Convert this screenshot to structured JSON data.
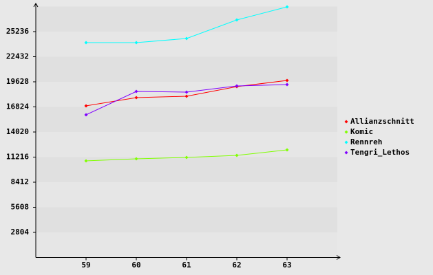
{
  "chart_data": {
    "type": "line",
    "x": [
      59,
      60,
      61,
      62,
      63
    ],
    "xlim": [
      58,
      64
    ],
    "xticks": [
      59,
      60,
      61,
      62,
      63
    ],
    "ylim": [
      0,
      28040
    ],
    "yticks": [
      2804,
      5608,
      8412,
      11216,
      14020,
      16824,
      19628,
      22432,
      25236
    ],
    "grid": true,
    "legend": "right",
    "series": [
      {
        "name": "Allianzschnitt",
        "color": "#ff0000",
        "values": [
          16939,
          17861,
          18015,
          19090,
          19782
        ]
      },
      {
        "name": "Komic",
        "color": "#80ff00",
        "values": [
          10793,
          11024,
          11178,
          11408,
          12023
        ]
      },
      {
        "name": "Rennreh",
        "color": "#00ffff",
        "values": [
          24007,
          24007,
          24468,
          26542,
          28001
        ]
      },
      {
        "name": "Tengri_Lethos",
        "color": "#8000ff",
        "values": [
          15940,
          18553,
          18476,
          19167,
          19321
        ]
      }
    ]
  }
}
